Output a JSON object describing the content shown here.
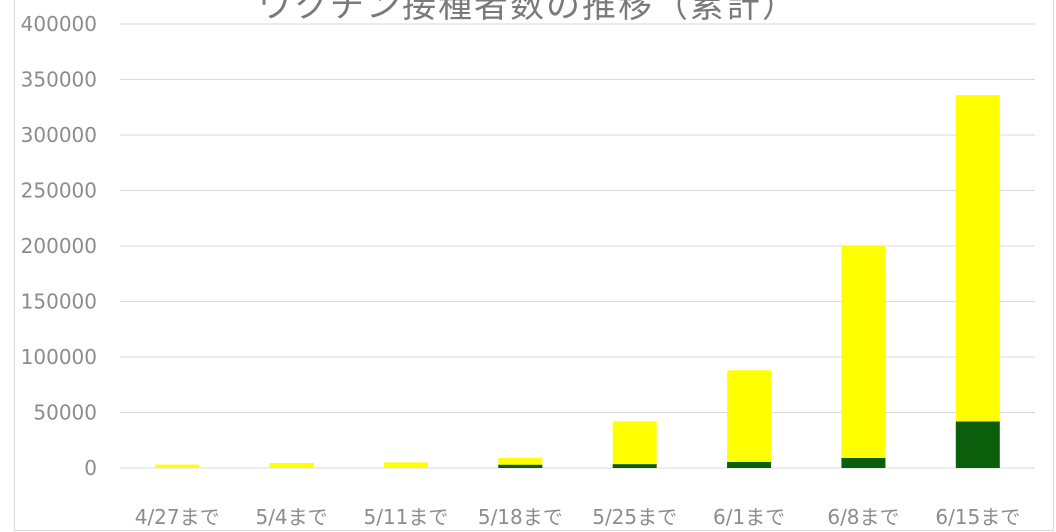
{
  "chart_data": {
    "type": "bar",
    "stacked": true,
    "title": "ワクチン接種者数の推移（累計）",
    "xlabel": "",
    "ylabel": "",
    "categories": [
      "4/27まで",
      "5/4まで",
      "5/11まで",
      "5/18まで",
      "5/25まで",
      "6/1まで",
      "6/8まで",
      "6/15まで"
    ],
    "series": [
      {
        "color": "#0b5e0b",
        "values": [
          0,
          0,
          0,
          3000,
          3500,
          5500,
          9000,
          42000
        ]
      },
      {
        "color": "#ffff00",
        "values": [
          3000,
          4500,
          5000,
          6000,
          38500,
          82500,
          191000,
          294000
        ]
      }
    ],
    "ylim": [
      0,
      400000
    ],
    "yticks": [
      0,
      50000,
      100000,
      150000,
      200000,
      250000,
      300000,
      350000,
      400000
    ],
    "ytick_labels": [
      "0",
      "50000",
      "100000",
      "150000",
      "200000",
      "250000",
      "300000",
      "350000",
      "400000"
    ],
    "grid": true,
    "legend": "none"
  }
}
